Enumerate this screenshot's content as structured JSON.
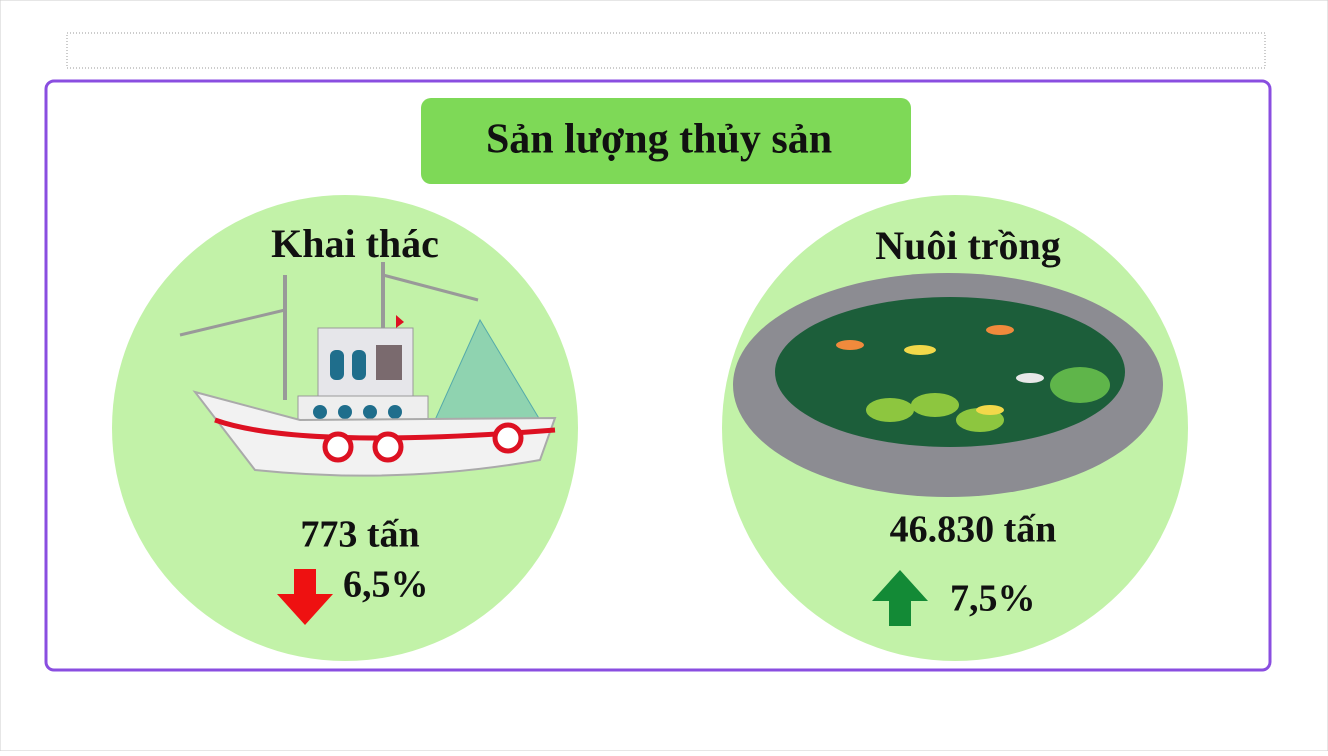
{
  "header": {
    "title": "Sản lượng thủy sản"
  },
  "items": [
    {
      "label": "Khai thác",
      "amount": "773 tấn",
      "change": "6,5%",
      "direction": "down",
      "arrow_color": "#ee1111"
    },
    {
      "label": "Nuôi trồng",
      "amount": "46.830 tấn",
      "change": "7,5%",
      "direction": "up",
      "arrow_color": "#138a36"
    }
  ]
}
